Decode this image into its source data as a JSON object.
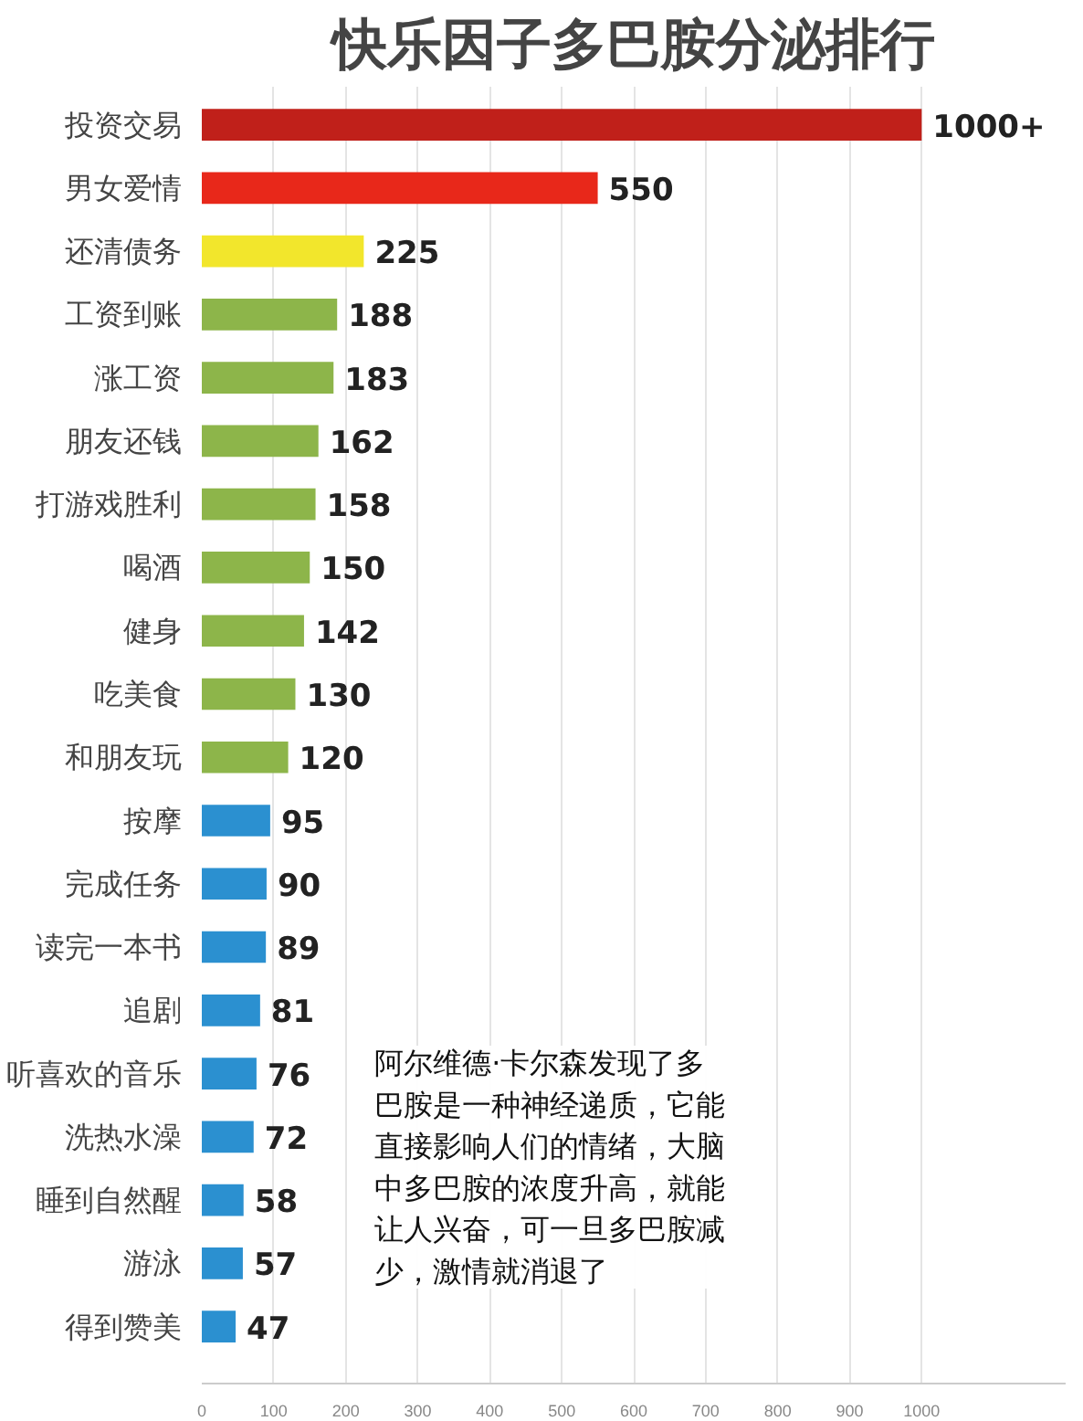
{
  "chart_data": {
    "type": "bar",
    "orientation": "horizontal",
    "title": "快乐因子多巴胺分泌排行",
    "categories": [
      "投资交易",
      "男女爱情",
      "还清债务",
      "工资到账",
      "涨工资",
      "朋友还钱",
      "打游戏胜利",
      "喝酒",
      "健身",
      "吃美食",
      "和朋友玩",
      "按摩",
      "完成任务",
      "读完一本书",
      "追剧",
      "听喜欢的音乐",
      "洗热水澡",
      "睡到自然醒",
      "游泳",
      "得到赞美"
    ],
    "values": [
      1000,
      550,
      225,
      188,
      183,
      162,
      158,
      150,
      142,
      130,
      120,
      95,
      90,
      89,
      81,
      76,
      72,
      58,
      57,
      47
    ],
    "value_labels": [
      "1000+",
      "550",
      "225",
      "188",
      "183",
      "162",
      "158",
      "150",
      "142",
      "130",
      "120",
      "95",
      "90",
      "89",
      "81",
      "76",
      "72",
      "58",
      "57",
      "47"
    ],
    "colors": [
      "#c0201a",
      "#e8281a",
      "#f2e62c",
      "#8db54a",
      "#8db54a",
      "#8db54a",
      "#8db54a",
      "#8db54a",
      "#8db54a",
      "#8db54a",
      "#8db54a",
      "#2b90d0",
      "#2b90d0",
      "#2b90d0",
      "#2b90d0",
      "#2b90d0",
      "#2b90d0",
      "#2b90d0",
      "#2b90d0",
      "#2b90d0"
    ],
    "xlim": [
      0,
      1200
    ],
    "xticks": [
      0,
      100,
      200,
      300,
      400,
      500,
      600,
      700,
      800,
      900,
      1000
    ],
    "grid": "x",
    "annotations": [
      "阿尔维德·卡尔森发现了多巴胺是一种神经递质，它能直接影响人们的情绪，大脑中多巴胺的浓度升高，就能让人兴奋，可一旦多巴胺减少，激情就消退了"
    ]
  }
}
